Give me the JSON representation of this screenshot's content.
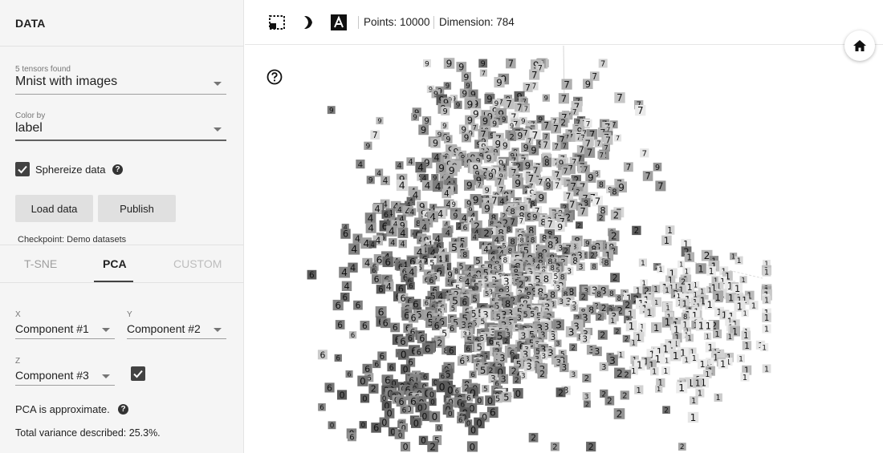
{
  "sidebar": {
    "title": "DATA",
    "tensors_found": "5 tensors found",
    "dataset": "Mnist with images",
    "color_by_label": "Color by",
    "color_by_value": "label",
    "sphereize_label": "Sphereize data",
    "sphereize_checked": true,
    "load_button": "Load data",
    "publish_button": "Publish",
    "checkpoint": "Checkpoint: Demo datasets",
    "tabs": [
      "T-SNE",
      "PCA",
      "CUSTOM"
    ],
    "active_tab": "PCA",
    "x_label": "X",
    "x_value": "Component #1",
    "y_label": "Y",
    "y_value": "Component #2",
    "z_label": "Z",
    "z_value": "Component #3",
    "z_enabled": true,
    "pca_note": "PCA is approximate.",
    "variance": "Total variance described: 25.3%."
  },
  "toolbar": {
    "icons": [
      "selection-box-icon",
      "night-mode-icon",
      "label-toggle-icon"
    ],
    "points": "Points: 10000",
    "dimension": "Dimension: 784"
  },
  "digits": [
    "0",
    "1",
    "2",
    "3",
    "4",
    "5",
    "6",
    "7",
    "8",
    "9"
  ],
  "digit_glyphs": [
    "9",
    "7",
    "3",
    "1",
    "4",
    "6",
    "5",
    "0",
    "2",
    "8"
  ]
}
